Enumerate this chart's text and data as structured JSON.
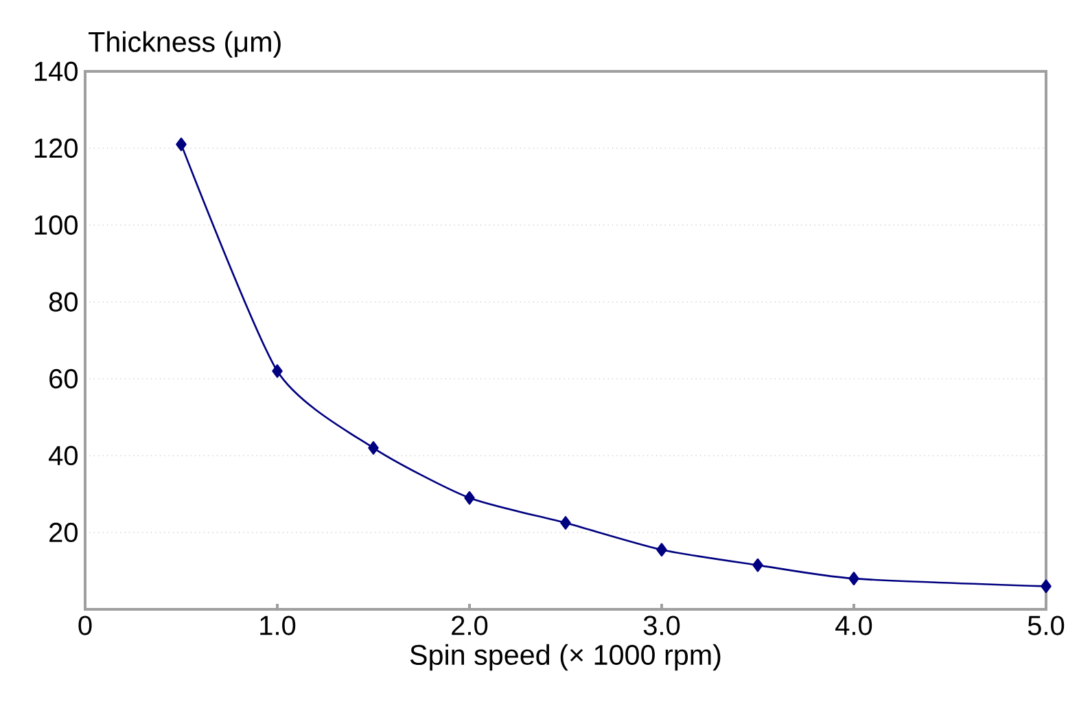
{
  "chart_data": {
    "type": "line",
    "xlabel": "Spin speed (× 1000 rpm)",
    "ylabel": "Thickness (μm)",
    "x": [
      0.5,
      1.0,
      1.5,
      2.0,
      2.5,
      3.0,
      3.5,
      4.0,
      5.0
    ],
    "series": [
      {
        "color": "#000080",
        "values": [
          121,
          62,
          42,
          29,
          22.5,
          15.5,
          11.5,
          8,
          6
        ]
      }
    ],
    "xlim": [
      0,
      5
    ],
    "xticks": [
      0,
      {
        "value": 1,
        "label": "1.0"
      },
      {
        "value": 2,
        "label": "2.0"
      },
      {
        "value": 3,
        "label": "3.0"
      },
      {
        "value": 4,
        "label": "4.0"
      },
      {
        "value": 5,
        "label": "5.0"
      }
    ],
    "ylim": [
      0,
      140
    ],
    "yticks": [
      20,
      40,
      60,
      80,
      100,
      120,
      140
    ],
    "grid": "y",
    "marker": "diamond",
    "line_style": "solid"
  }
}
